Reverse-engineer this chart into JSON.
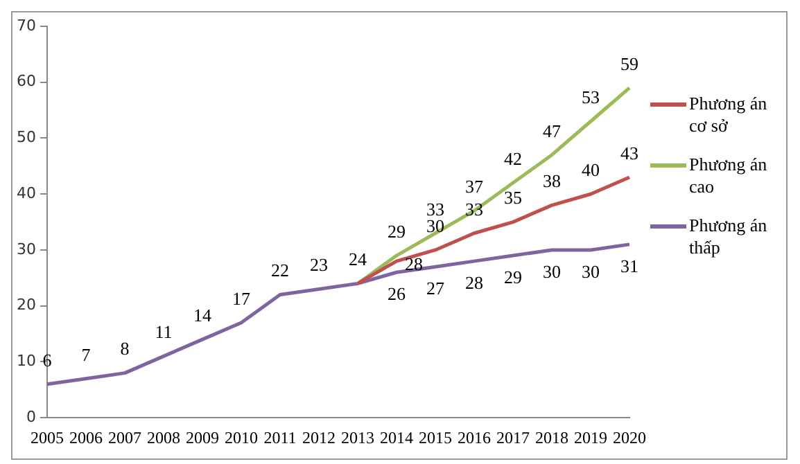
{
  "chart_data": {
    "type": "line",
    "categories": [
      "2005",
      "2006",
      "2007",
      "2008",
      "2009",
      "2010",
      "2011",
      "2012",
      "2013",
      "2014",
      "2015",
      "2016",
      "2017",
      "2018",
      "2019",
      "2020"
    ],
    "series": [
      {
        "name": "Phương án cơ sở",
        "color": "#c0504d",
        "values": [
          null,
          null,
          null,
          null,
          null,
          null,
          null,
          null,
          24,
          28,
          30,
          33,
          35,
          38,
          40,
          43
        ],
        "value_labels": [
          null,
          null,
          null,
          null,
          null,
          null,
          null,
          null,
          null,
          "28",
          "30",
          "33",
          "35",
          "38",
          "40",
          "43"
        ]
      },
      {
        "name": "Phương án cao",
        "color": "#9bbb59",
        "values": [
          null,
          null,
          null,
          null,
          null,
          null,
          null,
          null,
          24,
          29,
          33,
          37,
          42,
          47,
          53,
          59
        ],
        "value_labels": [
          null,
          null,
          null,
          null,
          null,
          null,
          null,
          null,
          null,
          "29",
          "33",
          "37",
          "42",
          "47",
          "53",
          "59"
        ]
      },
      {
        "name": "Phương án thấp",
        "color": "#8064a2",
        "values": [
          6,
          7,
          8,
          11,
          14,
          17,
          22,
          23,
          24,
          26,
          27,
          28,
          29,
          30,
          30,
          31
        ],
        "value_labels": [
          "6",
          "7",
          "8",
          "11",
          "14",
          "17",
          "22",
          "23",
          "24",
          "26",
          "27",
          "28",
          "29",
          "30",
          "30",
          "31"
        ]
      }
    ],
    "ylim": [
      0,
      70
    ],
    "yticks": [
      0,
      10,
      20,
      30,
      40,
      50,
      60,
      70
    ],
    "grid": false,
    "legend": "right",
    "marker": "none",
    "line_style": "solid"
  }
}
